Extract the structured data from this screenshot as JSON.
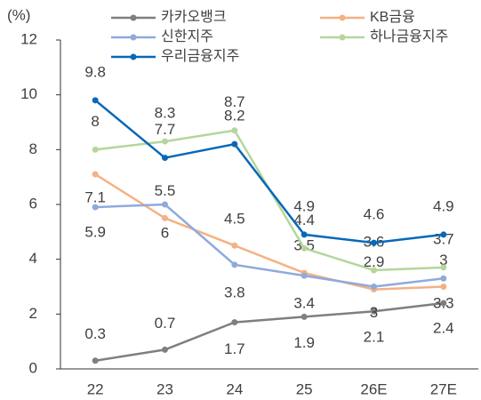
{
  "chart_data": {
    "type": "line",
    "y_label": "(%)",
    "categories": [
      "22",
      "23",
      "24",
      "25",
      "26E",
      "27E"
    ],
    "series": [
      {
        "name": "카카오뱅크",
        "color": "#7f7f7f",
        "values": [
          0.3,
          0.7,
          1.7,
          1.9,
          2.1,
          2.4
        ]
      },
      {
        "name": "KB금융",
        "color": "#f4b183",
        "values": [
          7.1,
          5.5,
          4.5,
          3.5,
          2.9,
          3.0
        ]
      },
      {
        "name": "신한지주",
        "color": "#8faadc",
        "values": [
          5.9,
          6.0,
          3.8,
          3.4,
          3.0,
          3.3
        ]
      },
      {
        "name": "하나금융지주",
        "color": "#b5d69a",
        "values": [
          8.0,
          8.3,
          8.7,
          4.4,
          3.6,
          3.7
        ]
      },
      {
        "name": "우리금융지주",
        "color": "#0868b8",
        "values": [
          9.8,
          7.7,
          8.2,
          4.9,
          4.6,
          4.9
        ]
      }
    ],
    "ylim": [
      0,
      12
    ],
    "yticks": [
      0,
      2,
      4,
      6,
      8,
      10,
      12
    ]
  }
}
